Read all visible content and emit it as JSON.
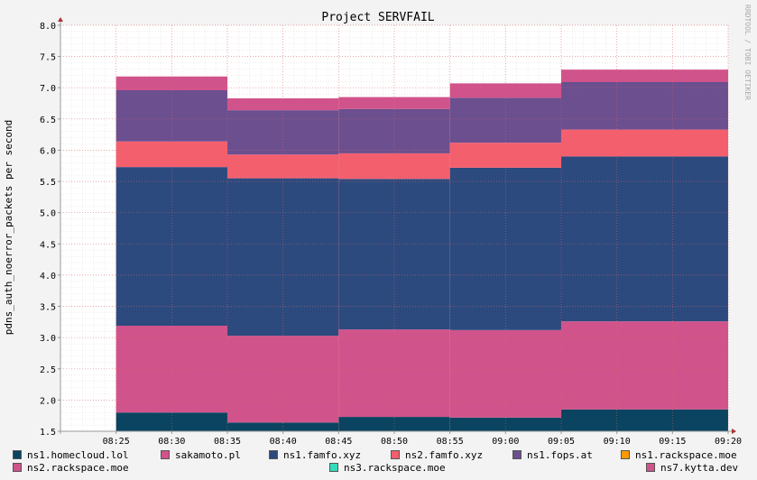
{
  "chart_data": {
    "type": "area",
    "title": "Project SERVFAIL",
    "ylabel": "pdns_auth_noerror_packets per second",
    "watermark": "RRDTOOL / TOBI OETIKER",
    "ylim": [
      1.5,
      8.0
    ],
    "yticks": [
      "1.5",
      "2.0",
      "2.5",
      "3.0",
      "3.5",
      "4.0",
      "4.5",
      "5.0",
      "5.5",
      "6.0",
      "6.5",
      "7.0",
      "7.5",
      "8.0"
    ],
    "xticks": [
      "08:25",
      "08:30",
      "08:35",
      "08:40",
      "08:45",
      "08:50",
      "08:55",
      "09:00",
      "09:05",
      "09:10",
      "09:15",
      "09:20"
    ],
    "x_start": "08:20",
    "x_end": "09:20",
    "periods": [
      {
        "start": "08:25",
        "end": "08:35"
      },
      {
        "start": "08:35",
        "end": "08:45"
      },
      {
        "start": "08:45",
        "end": "08:55"
      },
      {
        "start": "08:55",
        "end": "09:05"
      },
      {
        "start": "09:05",
        "end": "09:20"
      }
    ],
    "series": [
      {
        "name": "ns1.homecloud.lol",
        "color": "#0a4460",
        "values": [
          1.8,
          1.64,
          1.73,
          1.72,
          1.85
        ]
      },
      {
        "name": "sakamoto.pl",
        "color": "#d1538b",
        "values": [
          1.39,
          1.39,
          1.4,
          1.4,
          1.41
        ]
      },
      {
        "name": "ns1.famfo.xyz",
        "color": "#2c4a7e",
        "values": [
          2.54,
          2.52,
          2.41,
          2.6,
          2.64
        ]
      },
      {
        "name": "ns2.famfo.xyz",
        "color": "#f45f6e",
        "values": [
          0.41,
          0.38,
          0.41,
          0.4,
          0.43
        ]
      },
      {
        "name": "ns1.fops.at",
        "color": "#6b4f8f",
        "values": [
          0.82,
          0.71,
          0.71,
          0.72,
          0.76
        ]
      },
      {
        "name": "ns1.rackspace.moe",
        "color": "#ff9900",
        "values": [
          0,
          0,
          0,
          0,
          0
        ]
      },
      {
        "name": "ns2.rackspace.moe",
        "color": "#d1538b",
        "values": [
          0.22,
          0.19,
          0.19,
          0.23,
          0.2
        ]
      },
      {
        "name": "ns3.rackspace.moe",
        "color": "#33ddbb",
        "values": [
          0,
          0,
          0,
          0,
          0
        ]
      },
      {
        "name": "ns7.kytta.dev",
        "color": "#d1538b",
        "values": [
          0,
          0,
          0,
          0,
          0
        ]
      }
    ],
    "legend_position": "bottom",
    "grid": true
  }
}
